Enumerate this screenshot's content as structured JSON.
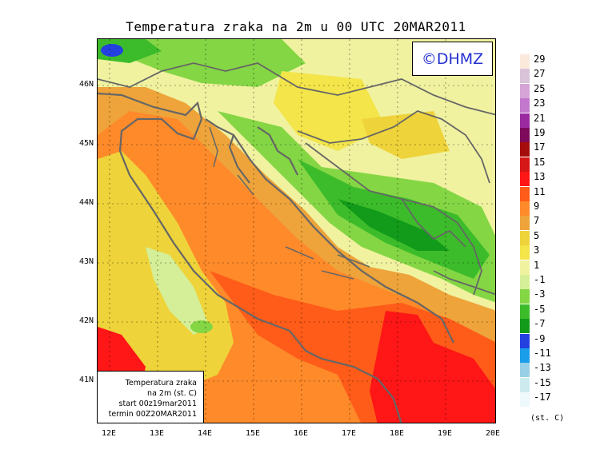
{
  "title": "Temperatura zraka na 2m u 00 UTC 20MAR2011",
  "logo_text": "©DHMZ",
  "info_box": {
    "line1": "Temperatura zraka",
    "line2": "na 2m (st. C)",
    "line3": "start 00z19mar2011",
    "line4": "termin 00Z20MAR2011"
  },
  "lat_labels": [
    "46N",
    "45N",
    "44N",
    "43N",
    "42N",
    "41N"
  ],
  "lon_labels": [
    "12E",
    "13E",
    "14E",
    "15E",
    "16E",
    "17E",
    "18E",
    "19E",
    "20E"
  ],
  "legend": {
    "levels": [
      "29",
      "27",
      "25",
      "23",
      "21",
      "19",
      "17",
      "15",
      "13",
      "11",
      "9",
      "7",
      "5",
      "3",
      "1",
      "-1",
      "-3",
      "-5",
      "-7",
      "-9",
      "-11",
      "-13",
      "-15",
      "-17"
    ],
    "colors": [
      "#fbe9dc",
      "#d9c3d9",
      "#d6a4d6",
      "#c377cd",
      "#9b2aa0",
      "#7d0a5a",
      "#a50d0d",
      "#d61717",
      "#ff1616",
      "#ff5c19",
      "#ff8a2a",
      "#eea43a",
      "#eed33a",
      "#f3e54a",
      "#f0f2a0",
      "#d4ef97",
      "#84d644",
      "#3cbc2a",
      "#129b1a",
      "#2441e0",
      "#1b9dea",
      "#97cfe6",
      "#cdebef",
      "#eef9fc"
    ],
    "unit": "(st. C)"
  }
}
